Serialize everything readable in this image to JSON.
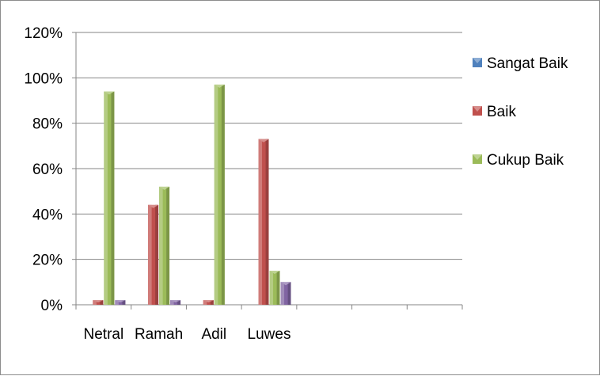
{
  "chart_data": {
    "type": "bar",
    "categories": [
      "Netral",
      "Ramah",
      "Adil",
      "Luwes",
      "",
      "",
      ""
    ],
    "series": [
      {
        "name": "Sangat Baik",
        "color": "#4f81bd",
        "values": [
          0,
          0,
          0,
          0,
          null,
          null,
          null
        ]
      },
      {
        "name": "Baik",
        "color": "#c0504d",
        "values": [
          2,
          44,
          2,
          73,
          null,
          null,
          null
        ]
      },
      {
        "name": "Cukup Baik",
        "color": "#9bbb59",
        "values": [
          94,
          52,
          97,
          15,
          null,
          null,
          null
        ]
      },
      {
        "name": "",
        "color": "#8064a2",
        "values": [
          2,
          2,
          0,
          10,
          null,
          null,
          null
        ]
      }
    ],
    "y_ticks": [
      "0%",
      "20%",
      "40%",
      "60%",
      "80%",
      "100%",
      "120%"
    ],
    "ylim": [
      0,
      120
    ],
    "grid": true,
    "legend_position": "right",
    "title": "",
    "xlabel": "",
    "ylabel": ""
  }
}
